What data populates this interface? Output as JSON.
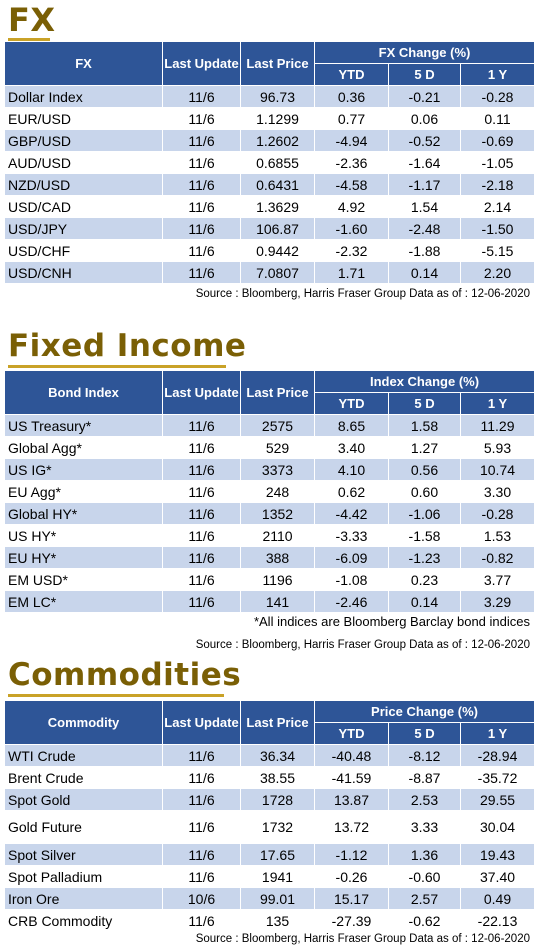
{
  "fx": {
    "title": "FX",
    "header": {
      "col1": "FX",
      "update": "Last Update",
      "price": "Last Price",
      "group": "FX Change (%)",
      "ytd": "YTD",
      "d5": "5 D",
      "y1": "1 Y"
    },
    "rows": [
      [
        "Dollar Index",
        "11/6",
        "96.73",
        "0.36",
        "-0.21",
        "-0.28"
      ],
      [
        "EUR/USD",
        "11/6",
        "1.1299",
        "0.77",
        "0.06",
        "0.11"
      ],
      [
        "GBP/USD",
        "11/6",
        "1.2602",
        "-4.94",
        "-0.52",
        "-0.69"
      ],
      [
        "AUD/USD",
        "11/6",
        "0.6855",
        "-2.36",
        "-1.64",
        "-1.05"
      ],
      [
        "NZD/USD",
        "11/6",
        "0.6431",
        "-4.58",
        "-1.17",
        "-2.18"
      ],
      [
        "USD/CAD",
        "11/6",
        "1.3629",
        "4.92",
        "1.54",
        "2.14"
      ],
      [
        "USD/JPY",
        "11/6",
        "106.87",
        "-1.60",
        "-2.48",
        "-1.50"
      ],
      [
        "USD/CHF",
        "11/6",
        "0.9442",
        "-2.32",
        "-1.88",
        "-5.15"
      ],
      [
        "USD/CNH",
        "11/6",
        "7.0807",
        "1.71",
        "0.14",
        "2.20"
      ]
    ],
    "source": "Source : Bloomberg, Harris Fraser Group Data as of : 12-06-2020"
  },
  "fixed_income": {
    "title": "Fixed Income",
    "header": {
      "col1": "Bond Index",
      "update": "Last Update",
      "price": "Last Price",
      "group": "Index Change (%)",
      "ytd": "YTD",
      "d5": "5 D",
      "y1": "1 Y"
    },
    "rows": [
      [
        "US Treasury*",
        "11/6",
        "2575",
        "8.65",
        "1.58",
        "11.29"
      ],
      [
        "Global Agg*",
        "11/6",
        "529",
        "3.40",
        "1.27",
        "5.93"
      ],
      [
        "US IG*",
        "11/6",
        "3373",
        "4.10",
        "0.56",
        "10.74"
      ],
      [
        "EU Agg*",
        "11/6",
        "248",
        "0.62",
        "0.60",
        "3.30"
      ],
      [
        "Global HY*",
        "11/6",
        "1352",
        "-4.42",
        "-1.06",
        "-0.28"
      ],
      [
        "US HY*",
        "11/6",
        "2110",
        "-3.33",
        "-1.58",
        "1.53"
      ],
      [
        "EU HY*",
        "11/6",
        "388",
        "-6.09",
        "-1.23",
        "-0.82"
      ],
      [
        "EM USD*",
        "11/6",
        "1196",
        "-1.08",
        "0.23",
        "3.77"
      ],
      [
        "EM LC*",
        "11/6",
        "141",
        "-2.46",
        "0.14",
        "3.29"
      ]
    ],
    "note": "*All indices are Bloomberg Barclay bond indices",
    "source": "Source : Bloomberg, Harris Fraser Group Data as of : 12-06-2020"
  },
  "commodities": {
    "title": "Commodities",
    "header": {
      "col1": "Commodity",
      "update": "Last Update",
      "price": "Last Price",
      "group": "Price Change (%)",
      "ytd": "YTD",
      "d5": "5 D",
      "y1": "1 Y"
    },
    "rows": [
      [
        "WTI Crude",
        "11/6",
        "36.34",
        "-40.48",
        "-8.12",
        "-28.94"
      ],
      [
        "Brent Crude",
        "11/6",
        "38.55",
        "-41.59",
        "-8.87",
        "-35.72"
      ],
      [
        "Spot Gold",
        "11/6",
        "1728",
        "13.87",
        "2.53",
        "29.55"
      ],
      [
        "Gold Future",
        "11/6",
        "1732",
        "13.72",
        "3.33",
        "30.04"
      ],
      [
        "Spot Silver",
        "11/6",
        "17.65",
        "-1.12",
        "1.36",
        "19.43"
      ],
      [
        "Spot Palladium",
        "11/6",
        "1941",
        "-0.26",
        "-0.60",
        "37.40"
      ],
      [
        "Iron Ore",
        "10/6",
        "99.01",
        "15.17",
        "2.57",
        "0.49"
      ],
      [
        "CRB Commodity",
        "11/6",
        "135",
        "-27.39",
        "-0.62",
        "-22.13"
      ]
    ],
    "source": "Source : Bloomberg, Harris Fraser Group Data as of : 12-06-2020"
  }
}
